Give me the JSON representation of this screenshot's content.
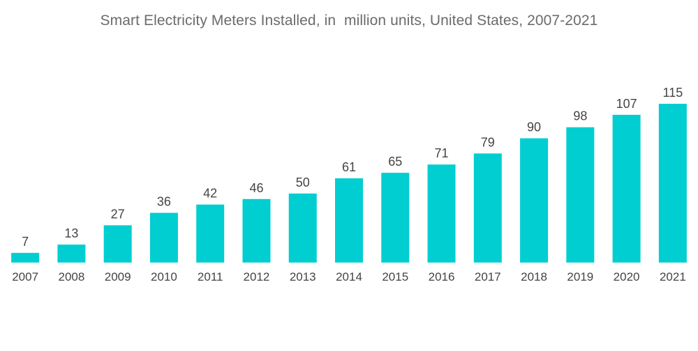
{
  "chart_data": {
    "type": "bar",
    "title": "Smart Electricity Meters Installed, in  million units, United States, 2007-2021",
    "xlabel": "",
    "ylabel": "",
    "categories": [
      "2007",
      "2008",
      "2009",
      "2010",
      "2011",
      "2012",
      "2013",
      "2014",
      "2015",
      "2016",
      "2017",
      "2018",
      "2019",
      "2020",
      "2021"
    ],
    "values": [
      7,
      13,
      27,
      36,
      42,
      46,
      50,
      61,
      65,
      71,
      79,
      90,
      98,
      107,
      115
    ],
    "ylim": [
      0,
      115
    ],
    "grid": false,
    "legend": "none",
    "colors": {
      "bar": "#00ced1"
    }
  }
}
